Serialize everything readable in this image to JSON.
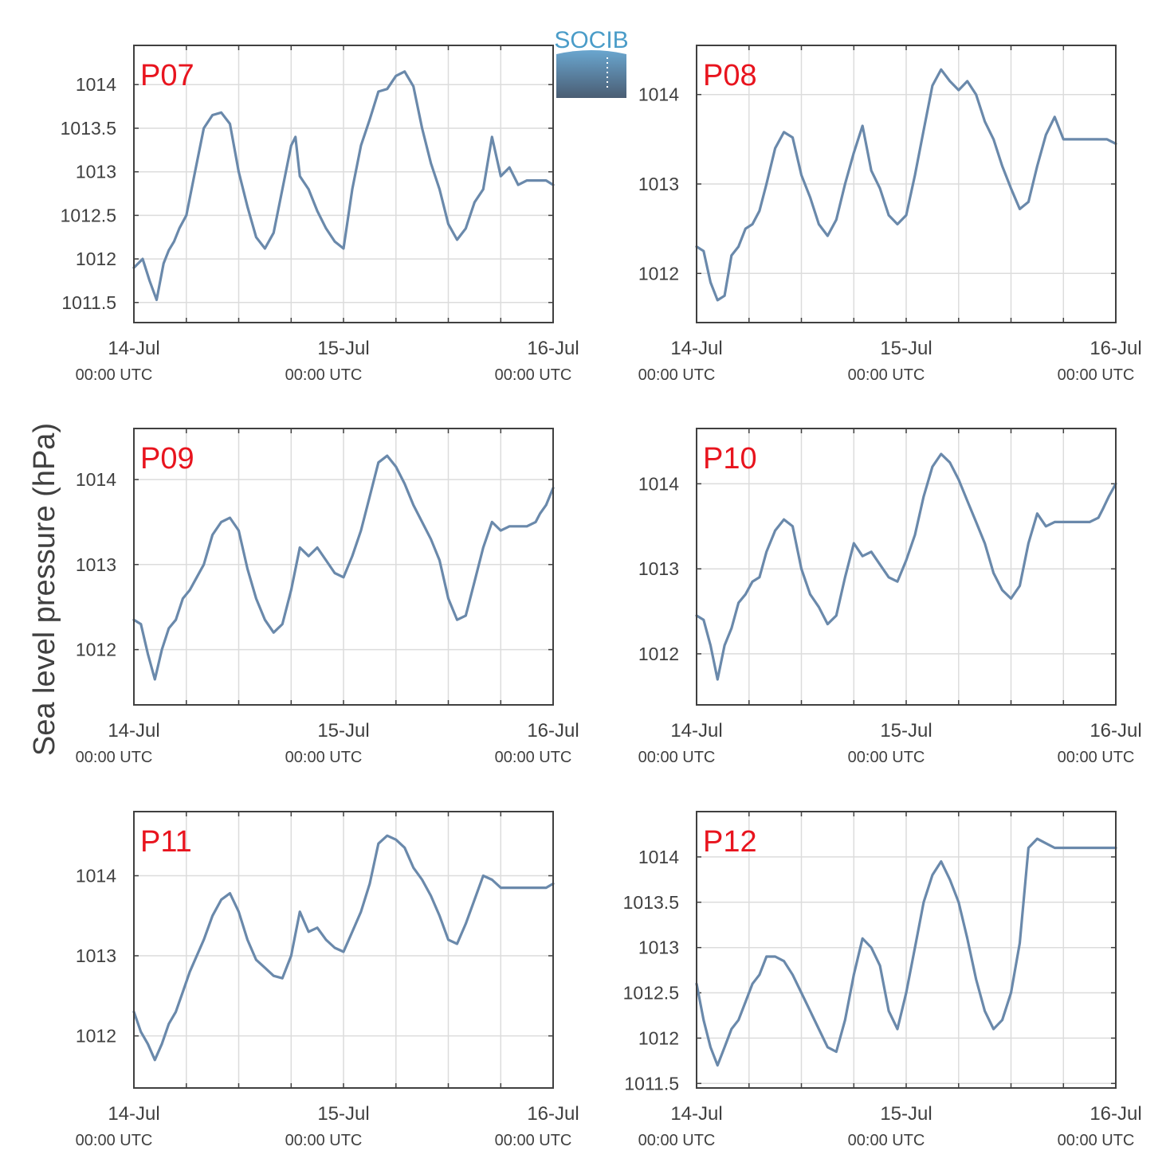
{
  "ylabel": "Sea level pressure (hPa)",
  "logo": {
    "text": "SOCIB",
    "text_color": "#4a9cc8",
    "top_color": "#6aa6cf",
    "bottom_color": "#4a5d73"
  },
  "line_color": "#6a89ab",
  "label_color": "#e8141e",
  "x_ticks": [
    {
      "date": "14-Jul",
      "time": "00:00 UTC"
    },
    {
      "date": "15-Jul",
      "time": "00:00 UTC"
    },
    {
      "date": "16-Jul",
      "time": "00:00 UTC"
    }
  ],
  "chart_data": [
    {
      "type": "line",
      "title": "P07",
      "xlim": [
        0,
        48
      ],
      "ylim": [
        1011.27,
        1014.45
      ],
      "yticks": [
        "1011.5",
        "1012",
        "1012.5",
        "1013",
        "1013.5",
        "1014"
      ],
      "x": [
        0,
        1,
        1.8,
        2.6,
        3.4,
        4,
        4.6,
        5.2,
        6,
        7,
        8,
        9,
        10,
        11,
        12,
        13,
        14,
        15,
        16,
        17,
        18,
        18.5,
        19,
        20,
        21,
        22,
        23,
        24,
        25,
        26,
        27,
        28,
        29,
        30,
        31,
        32,
        33,
        34,
        35,
        36,
        37,
        38,
        39,
        40,
        41,
        42,
        43,
        44,
        45,
        45.8,
        46.5,
        47.2,
        48
      ],
      "values": [
        1011.9,
        1012.0,
        1011.75,
        1011.53,
        1011.95,
        1012.1,
        1012.2,
        1012.35,
        1012.5,
        1013.0,
        1013.5,
        1013.65,
        1013.68,
        1013.55,
        1013.0,
        1012.6,
        1012.25,
        1012.12,
        1012.3,
        1012.8,
        1013.3,
        1013.4,
        1012.95,
        1012.8,
        1012.55,
        1012.35,
        1012.2,
        1012.12,
        1012.8,
        1013.3,
        1013.6,
        1013.92,
        1013.95,
        1014.1,
        1014.15,
        1013.98,
        1013.5,
        1013.1,
        1012.8,
        1012.4,
        1012.22,
        1012.35,
        1012.65,
        1012.8,
        1013.4,
        1012.95,
        1013.05,
        1012.85,
        1012.9,
        1012.9,
        1012.9,
        1012.9,
        1012.85
      ]
    },
    {
      "type": "line",
      "title": "P08",
      "xlim": [
        0,
        48
      ],
      "ylim": [
        1011.45,
        1014.55
      ],
      "yticks": [
        "1012",
        "1013",
        "1014"
      ],
      "x": [
        0,
        0.8,
        1.6,
        2.4,
        3.2,
        4,
        4.8,
        5.6,
        6.4,
        7.2,
        8,
        9,
        10,
        11,
        12,
        13,
        14,
        15,
        16,
        17,
        18,
        19,
        20,
        21,
        22,
        23,
        24,
        25,
        26,
        27,
        28,
        29,
        30,
        31,
        32,
        33,
        34,
        35,
        36,
        37,
        38,
        39,
        40,
        41,
        42,
        43,
        44,
        45,
        45.5,
        46,
        47,
        48
      ],
      "values": [
        1012.3,
        1012.25,
        1011.9,
        1011.7,
        1011.75,
        1012.2,
        1012.3,
        1012.5,
        1012.55,
        1012.7,
        1013.0,
        1013.4,
        1013.58,
        1013.52,
        1013.1,
        1012.85,
        1012.55,
        1012.42,
        1012.6,
        1013.0,
        1013.35,
        1013.65,
        1013.15,
        1012.95,
        1012.65,
        1012.55,
        1012.65,
        1013.1,
        1013.6,
        1014.1,
        1014.28,
        1014.15,
        1014.05,
        1014.15,
        1014.0,
        1013.7,
        1013.5,
        1013.2,
        1012.95,
        1012.72,
        1012.8,
        1013.2,
        1013.55,
        1013.75,
        1013.5,
        1013.5,
        1013.5,
        1013.5,
        1013.5,
        1013.5,
        1013.5,
        1013.45
      ]
    },
    {
      "type": "line",
      "title": "P09",
      "xlim": [
        0,
        48
      ],
      "ylim": [
        1011.35,
        1014.6
      ],
      "yticks": [
        "1012",
        "1013",
        "1014"
      ],
      "x": [
        0,
        0.8,
        1.6,
        2.4,
        3.2,
        4,
        4.8,
        5.6,
        6.4,
        7.2,
        8,
        9,
        10,
        11,
        12,
        13,
        14,
        15,
        16,
        17,
        18,
        19,
        20,
        21,
        22,
        23,
        24,
        25,
        26,
        27,
        28,
        29,
        30,
        31,
        32,
        33,
        34,
        35,
        36,
        37,
        38,
        39,
        40,
        41,
        42,
        43,
        44,
        45,
        46,
        46.5,
        47.2,
        48
      ],
      "values": [
        1012.35,
        1012.3,
        1011.95,
        1011.65,
        1012.0,
        1012.25,
        1012.35,
        1012.6,
        1012.7,
        1012.85,
        1013.0,
        1013.35,
        1013.5,
        1013.55,
        1013.4,
        1012.95,
        1012.6,
        1012.35,
        1012.2,
        1012.3,
        1012.7,
        1013.2,
        1013.1,
        1013.2,
        1013.05,
        1012.9,
        1012.85,
        1013.1,
        1013.4,
        1013.8,
        1014.2,
        1014.28,
        1014.15,
        1013.95,
        1013.7,
        1013.5,
        1013.3,
        1013.05,
        1012.6,
        1012.35,
        1012.4,
        1012.8,
        1013.2,
        1013.5,
        1013.4,
        1013.45,
        1013.45,
        1013.45,
        1013.5,
        1013.6,
        1013.7,
        1013.9
      ]
    },
    {
      "type": "line",
      "title": "P10",
      "xlim": [
        0,
        48
      ],
      "ylim": [
        1011.4,
        1014.65
      ],
      "yticks": [
        "1012",
        "1013",
        "1014"
      ],
      "x": [
        0,
        0.8,
        1.6,
        2.4,
        3.2,
        4,
        4.8,
        5.6,
        6.4,
        7.2,
        8,
        9,
        10,
        11,
        12,
        13,
        14,
        15,
        16,
        17,
        18,
        19,
        20,
        21,
        22,
        23,
        24,
        25,
        26,
        27,
        28,
        29,
        30,
        31,
        32,
        33,
        34,
        35,
        36,
        37,
        38,
        39,
        40,
        41,
        42,
        43,
        44,
        45,
        46,
        46.5,
        47.2,
        48
      ],
      "values": [
        1012.45,
        1012.4,
        1012.1,
        1011.7,
        1012.1,
        1012.3,
        1012.6,
        1012.7,
        1012.85,
        1012.9,
        1013.2,
        1013.45,
        1013.58,
        1013.5,
        1013.0,
        1012.7,
        1012.55,
        1012.35,
        1012.45,
        1012.9,
        1013.3,
        1013.15,
        1013.2,
        1013.05,
        1012.9,
        1012.85,
        1013.1,
        1013.4,
        1013.85,
        1014.2,
        1014.35,
        1014.25,
        1014.05,
        1013.8,
        1013.55,
        1013.3,
        1012.95,
        1012.75,
        1012.65,
        1012.8,
        1013.3,
        1013.65,
        1013.5,
        1013.55,
        1013.55,
        1013.55,
        1013.55,
        1013.55,
        1013.6,
        1013.7,
        1013.85,
        1014.0
      ]
    },
    {
      "type": "line",
      "title": "P11",
      "xlim": [
        0,
        48
      ],
      "ylim": [
        1011.35,
        1014.8
      ],
      "yticks": [
        "1012",
        "1013",
        "1014"
      ],
      "x": [
        0,
        0.8,
        1.6,
        2.4,
        3.2,
        4,
        4.8,
        5.6,
        6.4,
        7.2,
        8,
        9,
        10,
        11,
        12,
        13,
        14,
        15,
        16,
        17,
        18,
        19,
        20,
        21,
        22,
        23,
        24,
        25,
        26,
        27,
        28,
        29,
        30,
        31,
        32,
        33,
        34,
        35,
        36,
        37,
        38,
        39,
        40,
        41,
        42,
        43,
        44,
        45,
        46,
        46.5,
        47.2,
        48
      ],
      "values": [
        1012.3,
        1012.05,
        1011.9,
        1011.7,
        1011.9,
        1012.15,
        1012.3,
        1012.55,
        1012.8,
        1013.0,
        1013.2,
        1013.5,
        1013.7,
        1013.78,
        1013.55,
        1013.2,
        1012.95,
        1012.85,
        1012.75,
        1012.72,
        1013.0,
        1013.55,
        1013.3,
        1013.35,
        1013.2,
        1013.1,
        1013.05,
        1013.3,
        1013.55,
        1013.9,
        1014.4,
        1014.5,
        1014.45,
        1014.35,
        1014.1,
        1013.95,
        1013.75,
        1013.5,
        1013.2,
        1013.15,
        1013.4,
        1013.7,
        1014.0,
        1013.95,
        1013.85,
        1013.85,
        1013.85,
        1013.85,
        1013.85,
        1013.85,
        1013.85,
        1013.9
      ]
    },
    {
      "type": "line",
      "title": "P12",
      "xlim": [
        0,
        48
      ],
      "ylim": [
        1011.45,
        1014.5
      ],
      "yticks": [
        "1011.5",
        "1012",
        "1012.5",
        "1013",
        "1013.5",
        "1014"
      ],
      "x": [
        0,
        0.8,
        1.6,
        2.4,
        3.2,
        4,
        4.8,
        5.6,
        6.4,
        7.2,
        8,
        9,
        10,
        11,
        12,
        13,
        14,
        15,
        16,
        17,
        18,
        19,
        20,
        21,
        22,
        23,
        24,
        25,
        26,
        27,
        28,
        29,
        30,
        31,
        32,
        33,
        34,
        35,
        36,
        37,
        38,
        39,
        40,
        41,
        42,
        43,
        44,
        45,
        46,
        46.5,
        47.2,
        48
      ],
      "values": [
        1012.6,
        1012.2,
        1011.9,
        1011.7,
        1011.9,
        1012.1,
        1012.2,
        1012.4,
        1012.6,
        1012.7,
        1012.9,
        1012.9,
        1012.85,
        1012.7,
        1012.5,
        1012.3,
        1012.1,
        1011.9,
        1011.85,
        1012.2,
        1012.7,
        1013.1,
        1013.0,
        1012.8,
        1012.3,
        1012.1,
        1012.5,
        1013.0,
        1013.5,
        1013.8,
        1013.95,
        1013.75,
        1013.5,
        1013.1,
        1012.65,
        1012.3,
        1012.1,
        1012.2,
        1012.5,
        1013.05,
        1014.1,
        1014.2,
        1014.15,
        1014.1,
        1014.1,
        1014.1,
        1014.1,
        1014.1,
        1014.1,
        1014.1,
        1014.1,
        1014.1
      ]
    }
  ]
}
